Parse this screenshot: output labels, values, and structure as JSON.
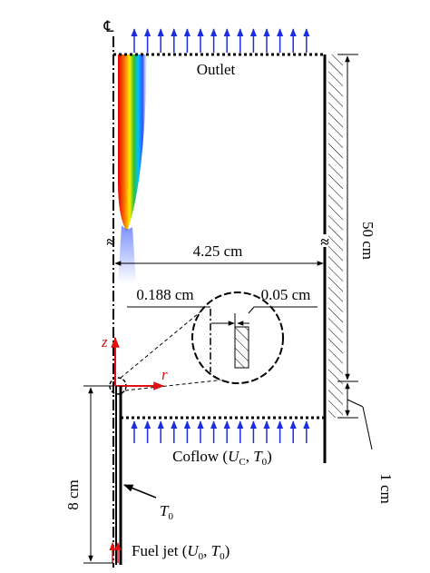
{
  "centerline_symbol": "℄",
  "labels": {
    "outlet": "Outlet",
    "radius": "4.25 cm",
    "height": "50 cm",
    "inner_radius": "0.188 cm",
    "wall_thickness": "0.05 cm",
    "z_axis": "z",
    "r_axis": "r",
    "coflow": [
      "Coflow (",
      "U",
      "C",
      ", ",
      "T",
      "0",
      ")"
    ],
    "tube_length": "8 cm",
    "wall_temperature": [
      "T",
      "0"
    ],
    "offset": "1 cm",
    "fuel_jet": [
      "Fuel jet (",
      "U",
      "0",
      ", ",
      "T",
      "0",
      ")"
    ]
  }
}
